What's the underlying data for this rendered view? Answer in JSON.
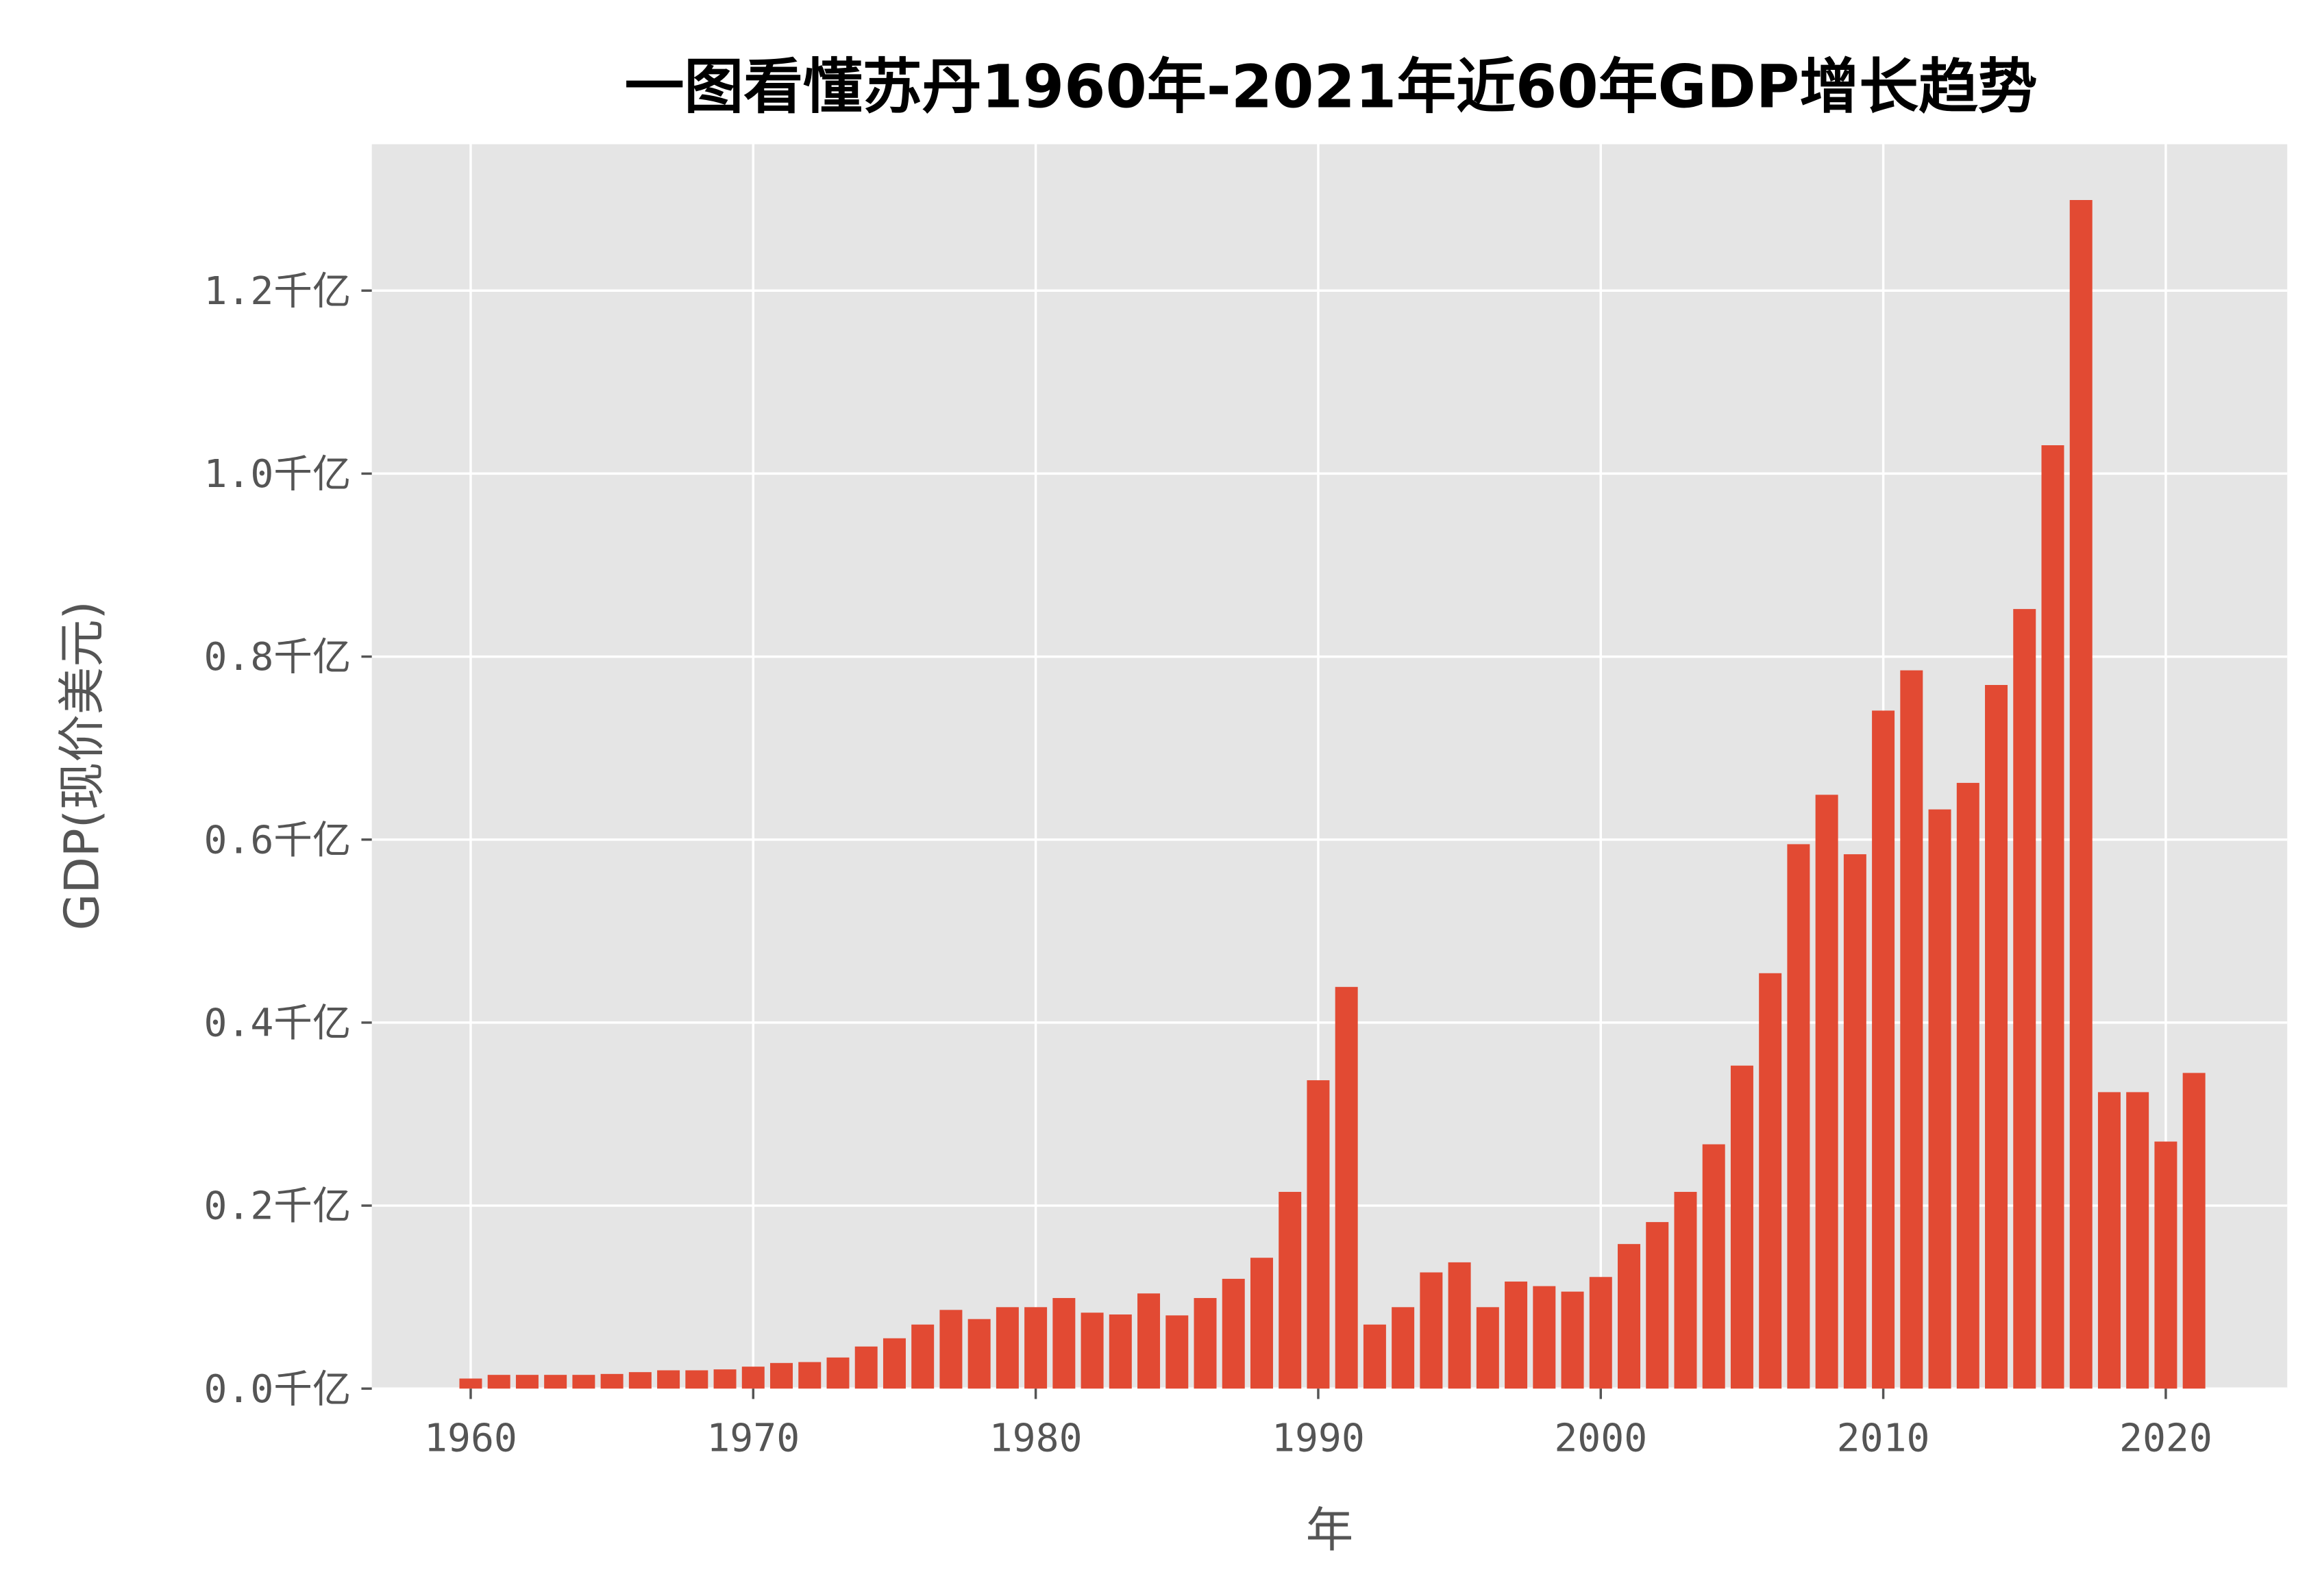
{
  "chart_data": {
    "type": "bar",
    "title": "一图看懂苏丹1960年-2021年近60年GDP增长趋势",
    "xlabel": "年",
    "ylabel": "GDP(现价美元)",
    "x": [
      1960,
      1961,
      1962,
      1963,
      1964,
      1965,
      1966,
      1967,
      1968,
      1969,
      1970,
      1971,
      1972,
      1973,
      1974,
      1975,
      1976,
      1977,
      1978,
      1979,
      1980,
      1981,
      1982,
      1983,
      1984,
      1985,
      1986,
      1987,
      1988,
      1989,
      1990,
      1991,
      1992,
      1993,
      1994,
      1995,
      1996,
      1997,
      1998,
      1999,
      2000,
      2001,
      2002,
      2003,
      2004,
      2005,
      2006,
      2007,
      2008,
      2009,
      2010,
      2011,
      2012,
      2013,
      2014,
      2015,
      2016,
      2017,
      2018,
      2019,
      2020,
      2021
    ],
    "values": [
      0.011,
      0.015,
      0.015,
      0.015,
      0.015,
      0.016,
      0.018,
      0.02,
      0.02,
      0.021,
      0.024,
      0.028,
      0.029,
      0.034,
      0.046,
      0.055,
      0.07,
      0.086,
      0.076,
      0.089,
      0.089,
      0.099,
      0.083,
      0.081,
      0.104,
      0.08,
      0.099,
      0.12,
      0.143,
      0.215,
      0.337,
      0.439,
      0.07,
      0.089,
      0.127,
      0.138,
      0.089,
      0.117,
      0.112,
      0.106,
      0.122,
      0.158,
      0.182,
      0.215,
      0.267,
      0.353,
      0.454,
      0.595,
      0.649,
      0.584,
      0.741,
      0.785,
      0.633,
      0.662,
      0.769,
      0.852,
      1.031,
      1.299,
      0.324,
      0.324,
      0.27,
      0.345
    ],
    "value_unit": "千亿",
    "xlim": [
      1956.5,
      2024.3
    ],
    "ylim": [
      0,
      1.36
    ],
    "xticks": [
      1960,
      1970,
      1980,
      1990,
      2000,
      2010,
      2020
    ],
    "xtick_labels": [
      "1960",
      "1970",
      "1980",
      "1990",
      "2000",
      "2010",
      "2020"
    ],
    "yticks": [
      0,
      0.2,
      0.4,
      0.6,
      0.8,
      1.0,
      1.2
    ],
    "ytick_labels": [
      "0.0千亿",
      "0.2千亿",
      "0.4千亿",
      "0.6千亿",
      "0.8千亿",
      "1.0千亿",
      "1.2千亿"
    ],
    "grid": true,
    "colors": {
      "bar": "#E24A33",
      "background": "#E5E5E5",
      "grid": "#FFFFFF"
    }
  }
}
